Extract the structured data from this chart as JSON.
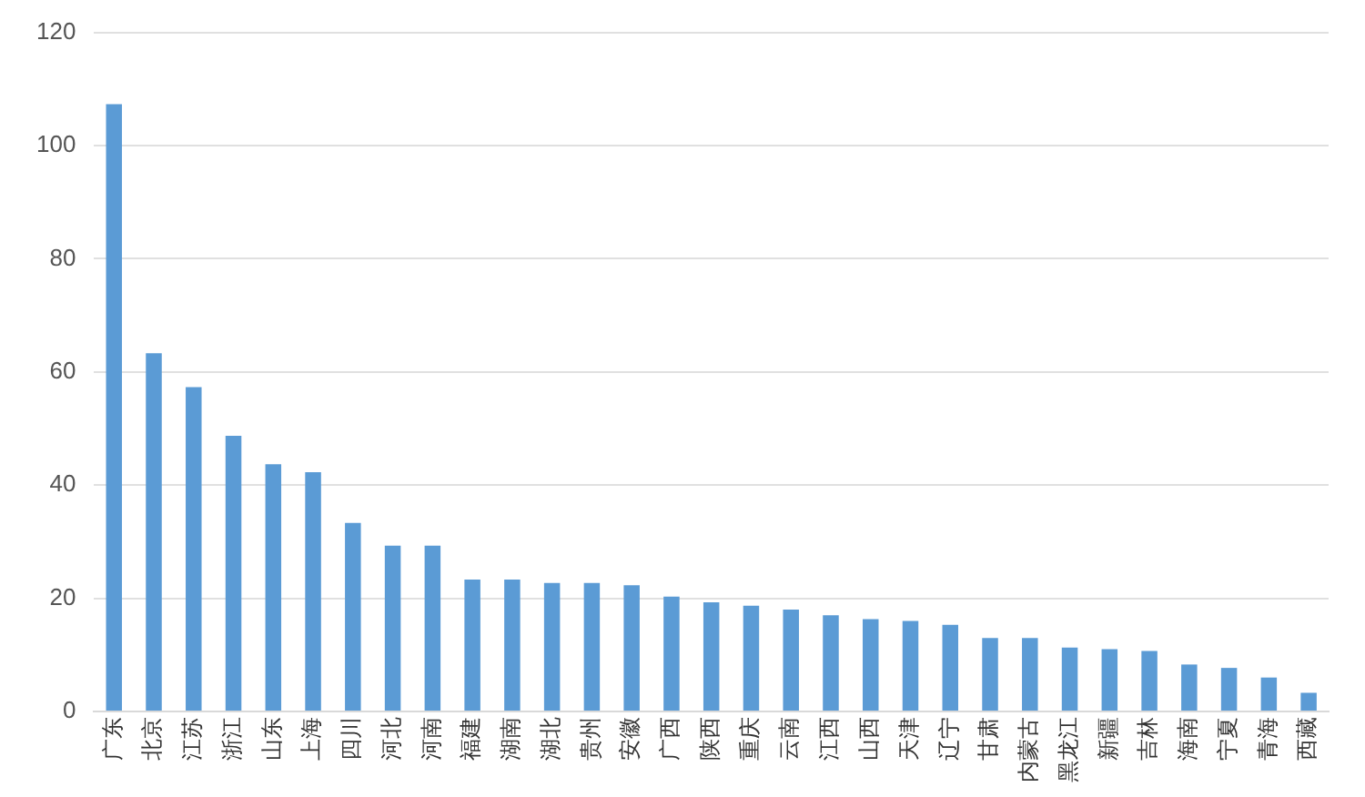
{
  "chart_data": {
    "type": "bar",
    "categories": [
      "广东",
      "北京",
      "江苏",
      "浙江",
      "山东",
      "上海",
      "四川",
      "河北",
      "河南",
      "福建",
      "湖南",
      "湖北",
      "贵州",
      "安徽",
      "广西",
      "陕西",
      "重庆",
      "云南",
      "江西",
      "山西",
      "天津",
      "辽宁",
      "甘肃",
      "内蒙古",
      "黑龙江",
      "新疆",
      "吉林",
      "海南",
      "宁夏",
      "青海",
      "西藏"
    ],
    "values": [
      107.3,
      63.3,
      57.3,
      48.7,
      43.7,
      42.3,
      33.3,
      29.3,
      29.3,
      23.3,
      23.3,
      22.7,
      22.7,
      22.3,
      20.3,
      19.3,
      18.7,
      18,
      17,
      16.3,
      16,
      15.3,
      13,
      13,
      11.3,
      11,
      10.7,
      8.3,
      7.7,
      6,
      3.3
    ],
    "color": "#5b9bd5",
    "ylim": [
      0,
      120
    ],
    "yticks": [
      0,
      20,
      40,
      60,
      80,
      100,
      120
    ],
    "grid": "y",
    "legend": false
  }
}
